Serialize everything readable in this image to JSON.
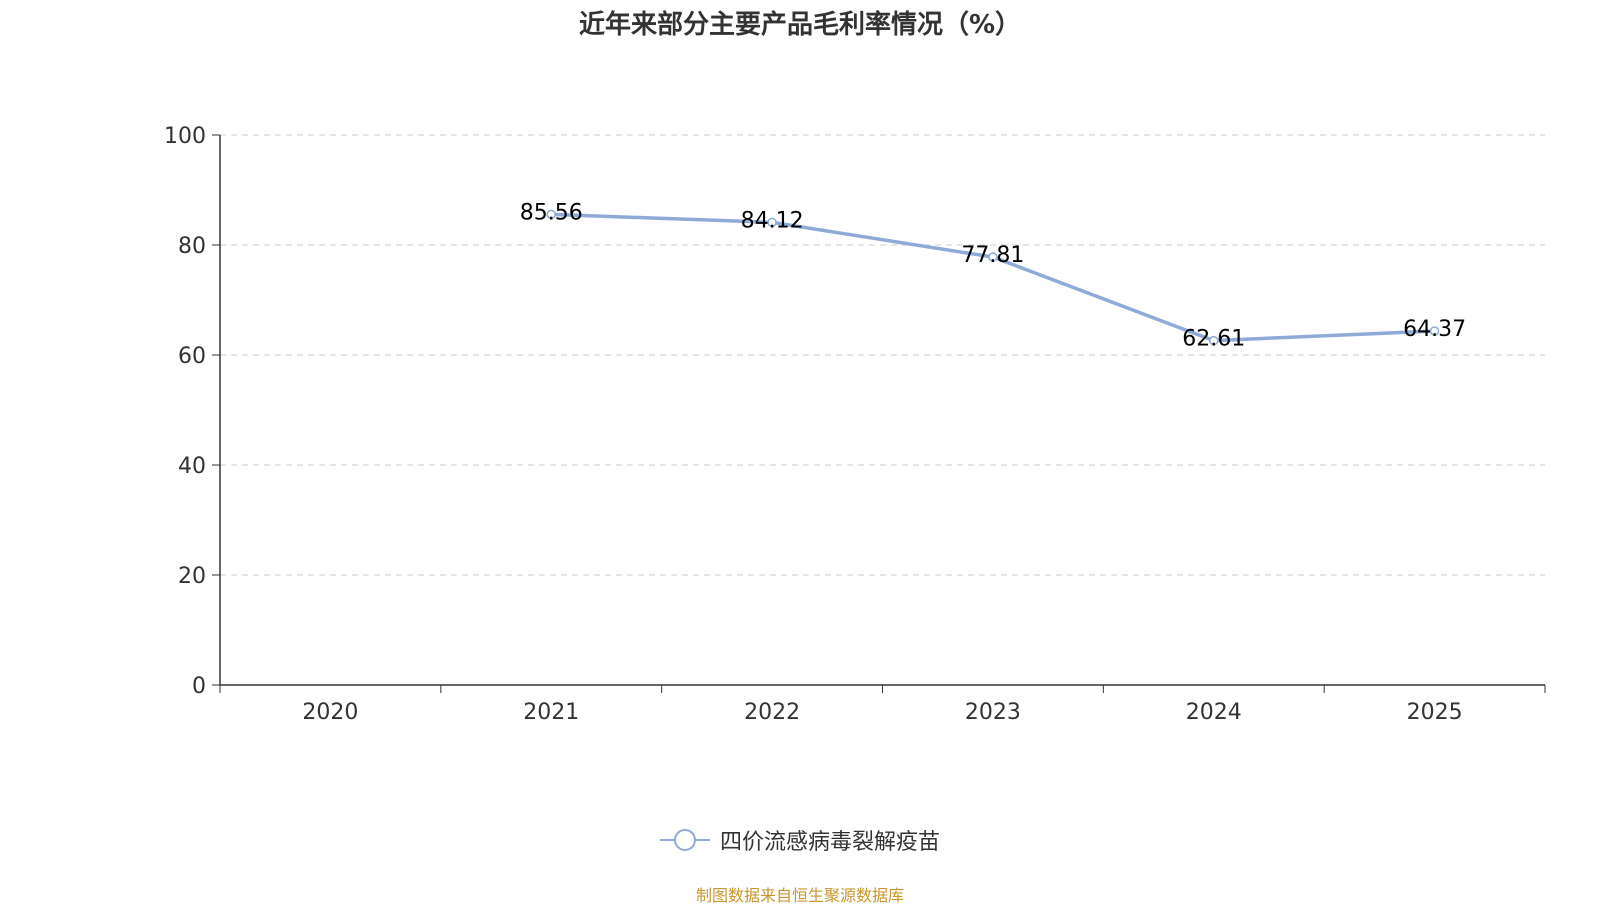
{
  "chart_data": {
    "type": "line",
    "title": "近年来部分主要产品毛利率情况（%）",
    "categories": [
      "2020",
      "2021",
      "2022",
      "2023",
      "2024",
      "2025"
    ],
    "series": [
      {
        "name": "四价流感病毒裂解疫苗",
        "values": [
          null,
          85.56,
          84.12,
          77.81,
          62.61,
          64.37
        ],
        "labels": [
          "",
          "85.56",
          "84.12",
          "77.81",
          "62.61",
          "64.37"
        ],
        "color": "#8eaad6"
      }
    ],
    "ylim": [
      0,
      100
    ],
    "yticks": [
      0,
      20,
      40,
      60,
      80,
      100
    ],
    "ytick_labels": [
      "0",
      "20",
      "40",
      "60",
      "80",
      "100"
    ],
    "xlabel": "",
    "ylabel": "",
    "grid": true,
    "legend_position": "bottom"
  },
  "legend": {
    "label": "四价流感病毒裂解疫苗"
  },
  "source": "制图数据来自恒生聚源数据库",
  "colors": {
    "series": "#8eaad6",
    "axis": "#333333",
    "grid": "#cccccc",
    "text": "#333333",
    "source": "#c9962e"
  }
}
